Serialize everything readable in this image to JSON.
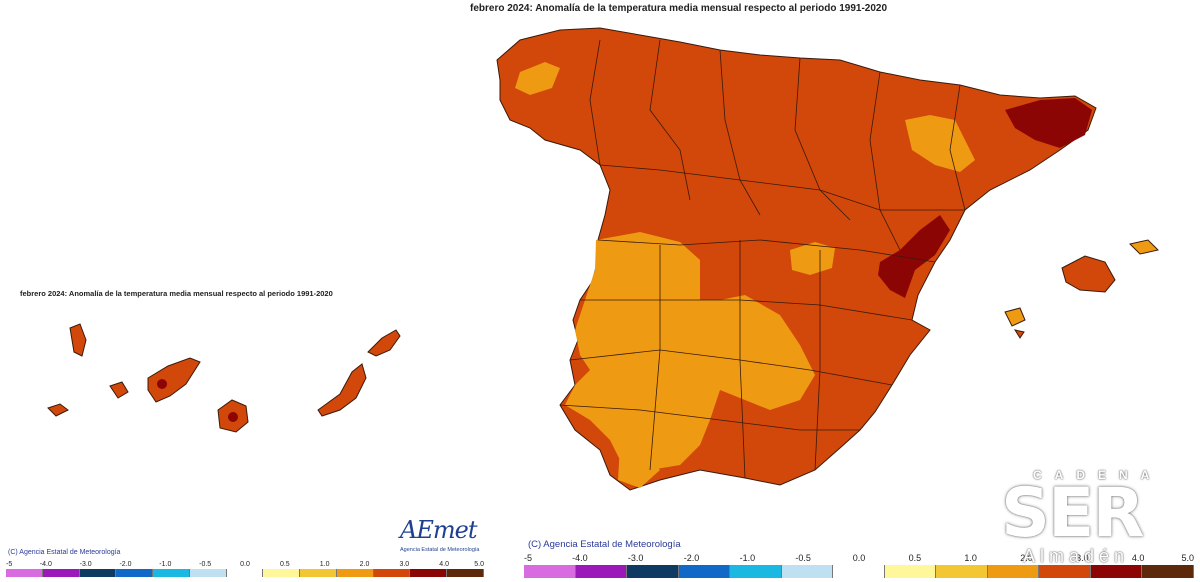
{
  "maps": [
    {
      "region": "peninsula_baleares",
      "title": "febrero 2024: Anomalía de la temperatura media mensual respecto al periodo 1991-2020",
      "credit": "(C) Agencia Estatal de Meteorología",
      "legend_ticks": [
        "-5",
        "-4.0",
        "-3.0",
        "-2.0",
        "-1.0",
        "-0.5",
        "0.0",
        "0.5",
        "1.0",
        "2.0",
        "3.0",
        "4.0",
        "5.0"
      ]
    },
    {
      "region": "canarias",
      "title": "febrero 2024: Anomalía de la temperatura media mensual respecto al periodo 1991-2020",
      "credit": "(C) Agencia Estatal de Meteorología",
      "legend_ticks": [
        "-5",
        "-4.0",
        "-3.0",
        "-2.0",
        "-1.0",
        "-0.5",
        "0.0",
        "0.5",
        "1.0",
        "2.0",
        "3.0",
        "4.0",
        "5.0"
      ]
    }
  ],
  "legend_colors": [
    "#d86be0",
    "#9a19b8",
    "#0f3a62",
    "#1268c7",
    "#1bb8e2",
    "#bfe0f0",
    "#ffffff",
    "#fff79a",
    "#f3c734",
    "#ee9a13",
    "#d2470a",
    "#8c0505",
    "#5c2a0a"
  ],
  "map_colors": {
    "anomaly_1_2": "#ee9a13",
    "anomaly_2_3": "#d2470a",
    "anomaly_3_4": "#8c0505",
    "border": "#3a1a0a"
  },
  "aemet_logo": {
    "word": "AEmet",
    "subtitle": "Agencia Estatal de Meteorología"
  },
  "watermark": {
    "cadena": "CADENA",
    "name": "SER",
    "town": "Almadén"
  }
}
